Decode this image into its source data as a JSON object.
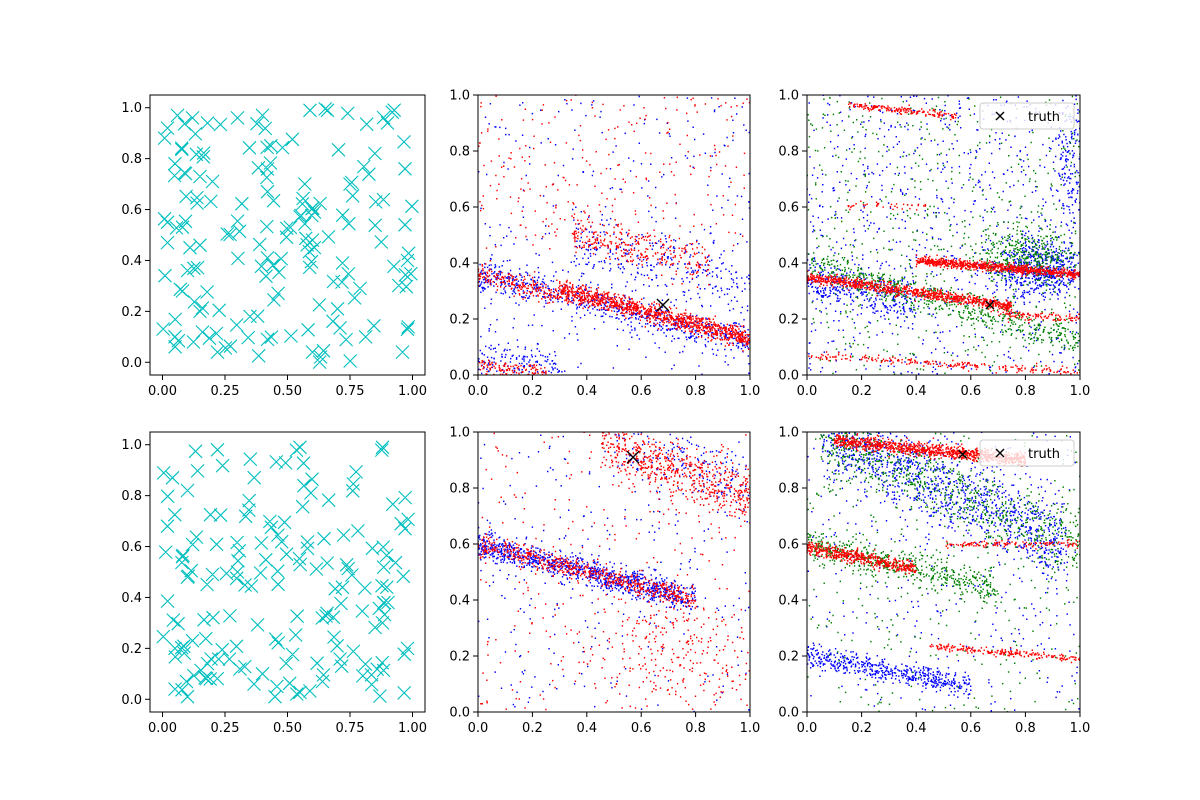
{
  "figure": {
    "colors": {
      "cross": "#00bfbf",
      "blue": "#0000ff",
      "red": "#ff0000",
      "green": "#008000",
      "truth": "#000000",
      "axis": "#000000",
      "background": "#ffffff"
    },
    "legend_label": "truth"
  },
  "chart_data": [
    {
      "id": "top-left",
      "type": "scatter",
      "marker": "x",
      "color": "cyan",
      "xlim": [
        -0.05,
        1.05
      ],
      "ylim": [
        -0.05,
        1.05
      ],
      "xticks": [
        0.0,
        0.25,
        0.5,
        0.75,
        1.0
      ],
      "xtick_labels": [
        "0.00",
        "0.25",
        "0.50",
        "0.75",
        "1.00"
      ],
      "yticks": [
        0.0,
        0.2,
        0.4,
        0.6,
        0.8,
        1.0
      ],
      "ytick_labels": [
        "0.0",
        "0.2",
        "0.4",
        "0.6",
        "0.8",
        "1.0"
      ],
      "n_points": 170,
      "seed": 11,
      "points": [
        [
          0.02,
          0.92
        ],
        [
          0.06,
          0.97
        ],
        [
          0.12,
          0.96
        ],
        [
          0.18,
          0.94
        ],
        [
          0.66,
          0.99
        ],
        [
          0.59,
          0.99
        ],
        [
          0.4,
          0.97
        ],
        [
          0.3,
          0.96
        ],
        [
          0.05,
          0.78
        ],
        [
          0.9,
          0.94
        ],
        [
          0.97,
          0.76
        ],
        [
          0.15,
          0.73
        ],
        [
          0.2,
          0.71
        ],
        [
          0.75,
          0.7
        ],
        [
          0.02,
          0.55
        ],
        [
          0.97,
          0.54
        ],
        [
          0.6,
          0.48
        ],
        [
          0.02,
          0.47
        ],
        [
          0.15,
          0.46
        ],
        [
          0.42,
          0.41
        ],
        [
          0.11,
          0.45
        ],
        [
          0.98,
          0.4
        ],
        [
          0.72,
          0.39
        ],
        [
          0.1,
          0.36
        ],
        [
          0.01,
          0.34
        ],
        [
          0.08,
          0.28
        ],
        [
          0.79,
          0.29
        ],
        [
          0.15,
          0.2
        ],
        [
          0.35,
          0.18
        ],
        [
          0.7,
          0.21
        ],
        [
          0.98,
          0.13
        ],
        [
          0.05,
          0.1
        ],
        [
          0.22,
          0.04
        ],
        [
          0.42,
          0.09
        ],
        [
          0.6,
          0.04
        ],
        [
          0.96,
          0.04
        ]
      ]
    },
    {
      "id": "top-middle",
      "type": "scatter",
      "marker": "dot",
      "xlim": [
        0,
        1
      ],
      "ylim": [
        0,
        1
      ],
      "xticks": [
        0.0,
        0.2,
        0.4,
        0.6,
        0.8,
        1.0
      ],
      "xtick_labels": [
        "0.0",
        "0.2",
        "0.4",
        "0.6",
        "0.8",
        "1.0"
      ],
      "yticks": [
        0.0,
        0.2,
        0.4,
        0.6,
        0.8,
        1.0
      ],
      "ytick_labels": [
        "0.0",
        "0.2",
        "0.4",
        "0.6",
        "0.8",
        "1.0"
      ],
      "seed": 23,
      "truth": {
        "x": 0.68,
        "y": 0.25,
        "size": "large"
      },
      "legend": false,
      "series": [
        {
          "name": "blue",
          "color": "blue",
          "components": [
            {
              "type": "band",
              "x": [
                0.0,
                1.0
              ],
              "y0": 0.36,
              "slope": -0.25,
              "sd": 0.03,
              "n": 650
            },
            {
              "type": "band",
              "x": [
                0.35,
                1.0
              ],
              "y0": 0.56,
              "slope": -0.25,
              "sd": 0.05,
              "n": 260
            },
            {
              "type": "band",
              "x": [
                0.0,
                0.3
              ],
              "y0": 0.06,
              "slope": -0.1,
              "sd": 0.03,
              "n": 130
            },
            {
              "type": "uniform",
              "x": [
                0,
                1
              ],
              "y": [
                0,
                1
              ],
              "n": 320
            }
          ]
        },
        {
          "name": "red",
          "color": "red",
          "components": [
            {
              "type": "band",
              "x": [
                0.3,
                1.0
              ],
              "y0": 0.38,
              "slope": -0.25,
              "sd": 0.018,
              "n": 1100
            },
            {
              "type": "band",
              "x": [
                0.0,
                0.3
              ],
              "y0": 0.36,
              "slope": -0.25,
              "sd": 0.02,
              "n": 200
            },
            {
              "type": "band",
              "x": [
                0.35,
                0.85
              ],
              "y0": 0.58,
              "slope": -0.22,
              "sd": 0.035,
              "n": 280
            },
            {
              "type": "band",
              "x": [
                0.0,
                0.25
              ],
              "y0": 0.03,
              "slope": -0.08,
              "sd": 0.015,
              "n": 120
            },
            {
              "type": "uniform",
              "x": [
                0,
                1
              ],
              "y": [
                0.45,
                1
              ],
              "n": 260
            }
          ]
        }
      ]
    },
    {
      "id": "top-right",
      "type": "scatter",
      "marker": "dot",
      "xlim": [
        0,
        1
      ],
      "ylim": [
        0,
        1
      ],
      "xticks": [
        0.0,
        0.2,
        0.4,
        0.6,
        0.8,
        1.0
      ],
      "xtick_labels": [
        "0.0",
        "0.2",
        "0.4",
        "0.6",
        "0.8",
        "1.0"
      ],
      "yticks": [
        0.0,
        0.2,
        0.4,
        0.6,
        0.8,
        1.0
      ],
      "ytick_labels": [
        "0.0",
        "0.2",
        "0.4",
        "0.6",
        "0.8",
        "1.0"
      ],
      "seed": 37,
      "truth": {
        "x": 0.67,
        "y": 0.25,
        "size": "small"
      },
      "legend": true,
      "series": [
        {
          "name": "blue",
          "color": "blue",
          "components": [
            {
              "type": "uniform",
              "x": [
                0,
                1
              ],
              "y": [
                0,
                1
              ],
              "n": 800
            },
            {
              "type": "cluster",
              "cx": 0.85,
              "cy": 0.38,
              "sx": 0.09,
              "sy": 0.05,
              "n": 600
            },
            {
              "type": "band",
              "x": [
                0.0,
                0.4
              ],
              "y0": 0.34,
              "slope": -0.2,
              "sd": 0.04,
              "n": 300
            },
            {
              "type": "cluster",
              "cx": 0.96,
              "cy": 0.75,
              "sx": 0.03,
              "sy": 0.15,
              "n": 150
            }
          ]
        },
        {
          "name": "green",
          "color": "green",
          "components": [
            {
              "type": "uniform",
              "x": [
                0,
                1
              ],
              "y": [
                0,
                1
              ],
              "n": 600
            },
            {
              "type": "band",
              "x": [
                0.0,
                1.0
              ],
              "y0": 0.4,
              "slope": -0.28,
              "sd": 0.03,
              "n": 550
            },
            {
              "type": "cluster",
              "cx": 0.8,
              "cy": 0.42,
              "sx": 0.1,
              "sy": 0.05,
              "n": 400
            }
          ]
        },
        {
          "name": "red",
          "color": "red",
          "components": [
            {
              "type": "band",
              "x": [
                0.0,
                0.75
              ],
              "y0": 0.35,
              "slope": -0.14,
              "sd": 0.01,
              "n": 850
            },
            {
              "type": "band",
              "x": [
                0.4,
                1.0
              ],
              "y0": 0.44,
              "slope": -0.08,
              "sd": 0.008,
              "n": 800
            },
            {
              "type": "band",
              "x": [
                0.15,
                0.55
              ],
              "y0": 0.98,
              "slope": -0.1,
              "sd": 0.006,
              "n": 170
            },
            {
              "type": "band",
              "x": [
                0.0,
                1.0
              ],
              "y0": 0.07,
              "slope": -0.06,
              "sd": 0.008,
              "n": 220
            },
            {
              "type": "band",
              "x": [
                0.7,
                1.0
              ],
              "y0": 0.25,
              "slope": -0.05,
              "sd": 0.008,
              "n": 100
            },
            {
              "type": "band",
              "x": [
                0.15,
                0.45
              ],
              "y0": 0.61,
              "slope": -0.02,
              "sd": 0.006,
              "n": 40
            }
          ]
        }
      ]
    },
    {
      "id": "bottom-left",
      "type": "scatter",
      "marker": "x",
      "color": "cyan",
      "xlim": [
        -0.05,
        1.05
      ],
      "ylim": [
        -0.05,
        1.05
      ],
      "xticks": [
        0.0,
        0.25,
        0.5,
        0.75,
        1.0
      ],
      "xtick_labels": [
        "0.00",
        "0.25",
        "0.50",
        "0.75",
        "1.00"
      ],
      "yticks": [
        0.0,
        0.2,
        0.4,
        0.6,
        0.8,
        1.0
      ],
      "ytick_labels": [
        "0.0",
        "0.2",
        "0.4",
        "0.6",
        "0.8",
        "1.0"
      ],
      "n_points": 170,
      "seed": 59,
      "points": [
        [
          0.22,
          0.98
        ],
        [
          0.55,
          0.99
        ],
        [
          0.88,
          0.99
        ],
        [
          0.04,
          0.87
        ],
        [
          0.1,
          0.82
        ],
        [
          0.02,
          0.68
        ],
        [
          0.08,
          0.56
        ],
        [
          0.97,
          0.67
        ],
        [
          0.1,
          0.48
        ],
        [
          0.2,
          0.49
        ],
        [
          0.3,
          0.5
        ],
        [
          0.72,
          0.44
        ],
        [
          0.88,
          0.3
        ],
        [
          0.05,
          0.2
        ],
        [
          0.12,
          0.23
        ],
        [
          0.98,
          0.2
        ],
        [
          0.18,
          0.14
        ],
        [
          0.4,
          0.1
        ],
        [
          0.64,
          0.07
        ],
        [
          0.05,
          0.04
        ],
        [
          0.1,
          0.01
        ],
        [
          0.45,
          0.01
        ]
      ]
    },
    {
      "id": "bottom-middle",
      "type": "scatter",
      "marker": "dot",
      "xlim": [
        0,
        1
      ],
      "ylim": [
        0,
        1
      ],
      "xticks": [
        0.0,
        0.2,
        0.4,
        0.6,
        0.8,
        1.0
      ],
      "xtick_labels": [
        "0.0",
        "0.2",
        "0.4",
        "0.6",
        "0.8",
        "1.0"
      ],
      "yticks": [
        0.0,
        0.2,
        0.4,
        0.6,
        0.8,
        1.0
      ],
      "ytick_labels": [
        "0.0",
        "0.2",
        "0.4",
        "0.6",
        "0.8",
        "1.0"
      ],
      "seed": 71,
      "truth": {
        "x": 0.57,
        "y": 0.91,
        "size": "large"
      },
      "legend": false,
      "series": [
        {
          "name": "blue",
          "color": "blue",
          "components": [
            {
              "type": "band",
              "x": [
                0.0,
                0.8
              ],
              "y0": 0.6,
              "slope": -0.25,
              "sd": 0.025,
              "n": 1000
            },
            {
              "type": "band",
              "x": [
                0.5,
                1.0
              ],
              "y0": 1.1,
              "slope": -0.3,
              "sd": 0.05,
              "n": 160
            },
            {
              "type": "uniform",
              "x": [
                0,
                1
              ],
              "y": [
                0,
                1
              ],
              "n": 260
            }
          ]
        },
        {
          "name": "red",
          "color": "red",
          "components": [
            {
              "type": "band",
              "x": [
                0.0,
                0.8
              ],
              "y0": 0.6,
              "slope": -0.25,
              "sd": 0.018,
              "n": 600
            },
            {
              "type": "band",
              "x": [
                0.45,
                1.0
              ],
              "y0": 1.12,
              "slope": -0.35,
              "sd": 0.05,
              "n": 600
            },
            {
              "type": "cluster",
              "cx": 0.72,
              "cy": 0.2,
              "sx": 0.18,
              "sy": 0.1,
              "n": 250
            },
            {
              "type": "uniform",
              "x": [
                0,
                1
              ],
              "y": [
                0,
                1
              ],
              "n": 260
            }
          ]
        }
      ]
    },
    {
      "id": "bottom-right",
      "type": "scatter",
      "marker": "dot",
      "xlim": [
        0,
        1
      ],
      "ylim": [
        0,
        1
      ],
      "xticks": [
        0.0,
        0.2,
        0.4,
        0.6,
        0.8,
        1.0
      ],
      "xtick_labels": [
        "0.0",
        "0.2",
        "0.4",
        "0.6",
        "0.8",
        "1.0"
      ],
      "yticks": [
        0.0,
        0.2,
        0.4,
        0.6,
        0.8,
        1.0
      ],
      "ytick_labels": [
        "0.0",
        "0.2",
        "0.4",
        "0.6",
        "0.8",
        "1.0"
      ],
      "seed": 97,
      "truth": {
        "x": 0.57,
        "y": 0.92,
        "size": "small"
      },
      "legend": true,
      "series": [
        {
          "name": "blue",
          "color": "blue",
          "components": [
            {
              "type": "band",
              "x": [
                0.05,
                0.95
              ],
              "y0": 1.02,
              "slope": -0.45,
              "sd": 0.07,
              "n": 1100
            },
            {
              "type": "band",
              "x": [
                0.0,
                0.6
              ],
              "y0": 0.2,
              "slope": -0.18,
              "sd": 0.02,
              "n": 500
            },
            {
              "type": "uniform",
              "x": [
                0,
                1
              ],
              "y": [
                0,
                1
              ],
              "n": 350
            }
          ]
        },
        {
          "name": "green",
          "color": "green",
          "components": [
            {
              "type": "band",
              "x": [
                0.05,
                1.0
              ],
              "y0": 1.0,
              "slope": -0.4,
              "sd": 0.06,
              "n": 700
            },
            {
              "type": "band",
              "x": [
                0.0,
                0.7
              ],
              "y0": 0.6,
              "slope": -0.22,
              "sd": 0.03,
              "n": 500
            },
            {
              "type": "uniform",
              "x": [
                0,
                1
              ],
              "y": [
                0,
                1
              ],
              "n": 350
            }
          ]
        },
        {
          "name": "red",
          "color": "red",
          "components": [
            {
              "type": "band",
              "x": [
                0.1,
                0.8
              ],
              "y0": 0.98,
              "slope": -0.1,
              "sd": 0.012,
              "n": 950
            },
            {
              "type": "band",
              "x": [
                0.0,
                0.4
              ],
              "y0": 0.59,
              "slope": -0.2,
              "sd": 0.012,
              "n": 480
            },
            {
              "type": "band",
              "x": [
                0.45,
                1.0
              ],
              "y0": 0.27,
              "slope": -0.08,
              "sd": 0.006,
              "n": 220
            },
            {
              "type": "band",
              "x": [
                0.5,
                1.0
              ],
              "y0": 0.6,
              "slope": 0.0,
              "sd": 0.006,
              "n": 130
            }
          ]
        }
      ]
    }
  ]
}
